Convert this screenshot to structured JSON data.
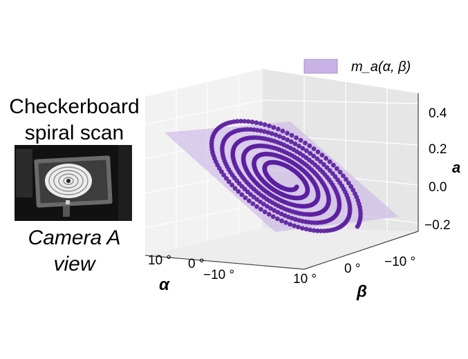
{
  "left_panel": {
    "title_line1": "Checkerboard",
    "title_line2": "spiral scan",
    "caption_line1": "Camera A",
    "caption_line2": "view"
  },
  "chart_data": {
    "type": "scatter3d",
    "title": "",
    "legend": {
      "label": "m_a(α, β)",
      "placement": "top-right",
      "swatch_color": "#c9b3e6"
    },
    "axes": {
      "alpha": {
        "label": "α",
        "ticks": [
          "10 °",
          "0 °",
          "−10 °"
        ],
        "range": [
          15,
          -15
        ]
      },
      "beta": {
        "label": "β",
        "ticks": [
          "10 °",
          "0 °",
          "−10 °"
        ],
        "range": [
          15,
          -15
        ]
      },
      "a": {
        "label": "a",
        "ticks": [
          "−0.2",
          "0.0",
          "0.2",
          "0.4"
        ],
        "range": [
          -0.3,
          0.45
        ]
      }
    },
    "grid": true,
    "series": [
      {
        "kind": "points",
        "color": "#5b1fa0",
        "shape": "spiral scan of sphere markers"
      },
      {
        "kind": "plane",
        "color": "#c9b3e6",
        "opacity": 0.6
      }
    ]
  }
}
